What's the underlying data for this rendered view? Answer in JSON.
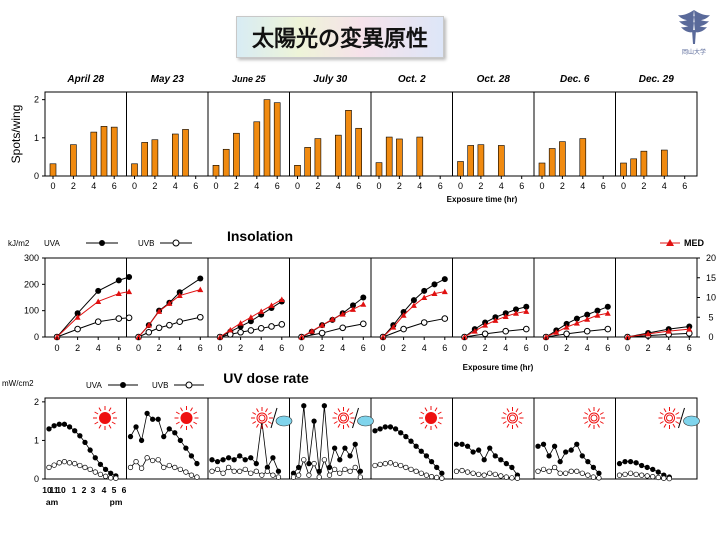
{
  "title": "太陽光の変異原性",
  "logo": {
    "text": "岡山大学",
    "icon": "university-emblem"
  },
  "colors": {
    "bar": "#f08a10",
    "med": "#e01010",
    "sun": "#ee1111",
    "cloud": "#7fd4ec"
  },
  "dates": [
    "April 28",
    "May 23",
    "June 25",
    "July 30",
    "Oct. 2",
    "Oct. 28",
    "Dec. 6",
    "Dec. 29"
  ],
  "sun_icons": [
    "full-sun",
    "full-sun",
    "sun-cloud",
    "sun-cloud",
    "full-sun",
    "weak-sun",
    "weak-sun",
    "sun-cloud"
  ],
  "chart_data": [
    {
      "type": "bar",
      "ylabel": "Spots/wing",
      "xlabel": "Exposure time (hr)",
      "xticks": [
        "0",
        "2",
        "4",
        "6"
      ],
      "yticks": [
        "0",
        "1",
        "2"
      ],
      "ylim": [
        0,
        2.2
      ],
      "x": [
        0,
        1,
        2,
        4,
        5,
        6
      ],
      "panels": [
        {
          "date": "April 28",
          "values": [
            0.32,
            null,
            0.82,
            1.15,
            1.3,
            1.28
          ]
        },
        {
          "date": "May 23",
          "values": [
            0.32,
            0.88,
            0.95,
            1.1,
            1.22,
            null
          ]
        },
        {
          "date": "June 25",
          "values": [
            0.28,
            0.7,
            1.12,
            1.42,
            2.0,
            1.92
          ]
        },
        {
          "date": "July 30",
          "values": [
            0.28,
            0.75,
            0.98,
            1.07,
            1.72,
            1.25
          ]
        },
        {
          "date": "Oct. 2",
          "values": [
            0.35,
            1.02,
            0.97,
            1.02,
            null,
            null
          ]
        },
        {
          "date": "Oct. 28",
          "values": [
            0.38,
            0.8,
            0.82,
            0.8,
            null,
            null
          ]
        },
        {
          "date": "Dec. 6",
          "values": [
            0.34,
            0.72,
            0.9,
            0.98,
            null,
            null
          ]
        },
        {
          "date": "Dec. 29",
          "values": [
            0.34,
            0.45,
            0.65,
            0.68,
            null,
            null
          ]
        }
      ]
    },
    {
      "type": "line",
      "title": "Insolation",
      "ylabel_left": "kJ/m2",
      "xlabel": "Exposure time (hr)",
      "xticks": [
        "0",
        "2",
        "4",
        "6"
      ],
      "yticks_left": [
        "0",
        "100",
        "200",
        "300"
      ],
      "yticks_right": [
        "0",
        "5",
        "10",
        "15",
        "20"
      ],
      "ylim_left": [
        0,
        300
      ],
      "ylim_right": [
        0,
        20
      ],
      "legend": {
        "uva": "UVA",
        "uvb": "UVB",
        "med": "MED"
      },
      "panels": [
        {
          "date": "April 28",
          "uva": {
            "x": [
              0,
              2,
              4,
              6,
              7
            ],
            "y": [
              0,
              90,
              175,
              215,
              228
            ]
          },
          "uvb": {
            "x": [
              0,
              2,
              4,
              6,
              7
            ],
            "y": [
              0,
              30,
              58,
              70,
              73
            ]
          },
          "med": {
            "x": [
              0,
              2,
              4,
              6,
              7
            ],
            "y": [
              0,
              5,
              9,
              11,
              11.5
            ]
          }
        },
        {
          "date": "May 23",
          "uva": {
            "x": [
              0,
              1,
              2,
              3,
              4,
              6
            ],
            "y": [
              0,
              45,
              100,
              130,
              170,
              222
            ]
          },
          "uvb": {
            "x": [
              0,
              1,
              2,
              3,
              4,
              6
            ],
            "y": [
              0,
              18,
              35,
              45,
              58,
              75
            ]
          },
          "med": {
            "x": [
              0,
              1,
              2,
              3,
              4,
              6
            ],
            "y": [
              0,
              3,
              6.5,
              8.5,
              10.5,
              12
            ]
          }
        },
        {
          "date": "June 25",
          "uva": {
            "x": [
              0,
              1,
              2,
              3,
              4,
              5,
              6
            ],
            "y": [
              0,
              20,
              40,
              60,
              85,
              110,
              135
            ]
          },
          "uvb": {
            "x": [
              0,
              1,
              2,
              3,
              4,
              5,
              6
            ],
            "y": [
              0,
              10,
              18,
              25,
              33,
              40,
              48
            ]
          },
          "med": {
            "x": [
              0,
              1,
              2,
              3,
              4,
              5,
              6
            ],
            "y": [
              0,
              1.8,
              3.5,
              5,
              6.5,
              8,
              9.5
            ]
          }
        },
        {
          "date": "July 30",
          "uva": {
            "x": [
              0,
              1,
              2,
              3,
              4,
              5,
              6
            ],
            "y": [
              0,
              20,
              45,
              65,
              90,
              120,
              150
            ]
          },
          "uvb": {
            "x": [
              0,
              2,
              4,
              6
            ],
            "y": [
              0,
              15,
              35,
              50
            ]
          },
          "med": {
            "x": [
              0,
              1,
              2,
              3,
              4,
              5,
              6
            ],
            "y": [
              0,
              1.5,
              3,
              4.5,
              5.8,
              7,
              8.3
            ]
          }
        },
        {
          "date": "Oct. 2",
          "uva": {
            "x": [
              0,
              1,
              2,
              3,
              4,
              5,
              6
            ],
            "y": [
              0,
              45,
              95,
              140,
              175,
              200,
              220
            ]
          },
          "uvb": {
            "x": [
              0,
              2,
              4,
              6
            ],
            "y": [
              0,
              30,
              55,
              70
            ]
          },
          "med": {
            "x": [
              0,
              1,
              2,
              3,
              4,
              5,
              6
            ],
            "y": [
              0,
              2.5,
              5.5,
              8,
              10,
              11,
              11.5
            ]
          }
        },
        {
          "date": "Oct. 28",
          "uva": {
            "x": [
              0,
              1,
              2,
              3,
              4,
              5,
              6
            ],
            "y": [
              0,
              30,
              55,
              75,
              90,
              105,
              115
            ]
          },
          "uvb": {
            "x": [
              0,
              2,
              4,
              6
            ],
            "y": [
              0,
              12,
              22,
              30
            ]
          },
          "med": {
            "x": [
              0,
              1,
              2,
              3,
              4,
              5,
              6
            ],
            "y": [
              0,
              1.5,
              3,
              4.2,
              5.2,
              6,
              6.5
            ]
          }
        },
        {
          "date": "Dec. 6",
          "uva": {
            "x": [
              0,
              1,
              2,
              3,
              4,
              5,
              6
            ],
            "y": [
              0,
              25,
              50,
              70,
              85,
              100,
              115
            ]
          },
          "uvb": {
            "x": [
              0,
              2,
              4,
              6
            ],
            "y": [
              0,
              12,
              22,
              30
            ]
          },
          "med": {
            "x": [
              0,
              1,
              2,
              3,
              4,
              5,
              6
            ],
            "y": [
              0,
              1.2,
              2.5,
              3.5,
              4.5,
              5.5,
              6
            ]
          }
        },
        {
          "date": "Dec. 29",
          "uva": {
            "x": [
              0,
              2,
              4,
              6
            ],
            "y": [
              0,
              15,
              30,
              40
            ]
          },
          "uvb": {
            "x": [
              0,
              2,
              4,
              6
            ],
            "y": [
              0,
              5,
              10,
              14
            ]
          },
          "med": {
            "x": [
              0,
              2,
              4,
              6
            ],
            "y": [
              0,
              0.8,
              1.5,
              2
            ]
          }
        }
      ]
    },
    {
      "type": "line",
      "title": "UV dose rate",
      "ylabel": "mW/cm2",
      "yticks": [
        "0",
        "1",
        "2"
      ],
      "ylim": [
        0,
        2.1
      ],
      "legend": {
        "uva": "UVA",
        "uvb": "UVB"
      },
      "xticks_top": [
        "10",
        "11",
        "10",
        "1",
        "2",
        "3",
        "4",
        "5",
        "6"
      ],
      "xticks_bottom": [
        "am",
        "pm"
      ],
      "panels": [
        {
          "date": "April 28",
          "uva": [
            1.3,
            1.38,
            1.42,
            1.42,
            1.35,
            1.25,
            1.12,
            0.95,
            0.75,
            0.55,
            0.38,
            0.25,
            0.15,
            0.08
          ],
          "uvb": [
            0.3,
            0.36,
            0.42,
            0.45,
            0.42,
            0.4,
            0.35,
            0.3,
            0.25,
            0.18,
            0.12,
            0.07,
            0.03,
            0.02
          ]
        },
        {
          "date": "May 23",
          "uva": [
            1.1,
            1.35,
            1.0,
            1.7,
            1.55,
            1.55,
            1.1,
            1.3,
            1.2,
            1.0,
            0.8,
            0.6,
            0.4
          ],
          "uvb": [
            0.3,
            0.45,
            0.28,
            0.55,
            0.48,
            0.5,
            0.3,
            0.35,
            0.3,
            0.25,
            0.18,
            0.1,
            0.05
          ]
        },
        {
          "date": "June 25",
          "uva": [
            0.5,
            0.45,
            0.5,
            0.55,
            0.5,
            0.6,
            0.5,
            0.55,
            0.4,
            1.5,
            0.3,
            0.55,
            0.2
          ],
          "uvb": [
            0.2,
            0.25,
            0.15,
            0.3,
            0.2,
            0.2,
            0.25,
            0.15,
            0.2,
            0.1,
            0.2,
            0.1,
            0.05
          ]
        },
        {
          "date": "July 30",
          "uva": [
            0.15,
            0.3,
            1.9,
            0.4,
            1.5,
            0.2,
            1.9,
            0.3,
            0.8,
            0.5,
            0.8,
            0.6,
            0.9,
            0.2
          ],
          "uvb": [
            0.05,
            0.1,
            0.5,
            0.1,
            0.4,
            0.05,
            0.5,
            0.1,
            0.25,
            0.15,
            0.25,
            0.2,
            0.3,
            0.05
          ]
        },
        {
          "date": "Oct. 2",
          "uva": [
            1.25,
            1.3,
            1.35,
            1.35,
            1.3,
            1.2,
            1.1,
            0.98,
            0.85,
            0.72,
            0.6,
            0.45,
            0.3,
            0.15
          ],
          "uvb": [
            0.35,
            0.38,
            0.4,
            0.42,
            0.38,
            0.35,
            0.3,
            0.25,
            0.2,
            0.15,
            0.1,
            0.06,
            0.04,
            0.02
          ]
        },
        {
          "date": "Oct. 28",
          "uva": [
            0.9,
            0.9,
            0.85,
            0.7,
            0.75,
            0.5,
            0.8,
            0.6,
            0.5,
            0.4,
            0.3,
            0.1
          ],
          "uvb": [
            0.2,
            0.22,
            0.18,
            0.15,
            0.12,
            0.1,
            0.15,
            0.12,
            0.08,
            0.05,
            0.03,
            0.02
          ]
        },
        {
          "date": "Dec. 6",
          "uva": [
            0.85,
            0.9,
            0.6,
            0.85,
            0.45,
            0.7,
            0.75,
            0.9,
            0.6,
            0.45,
            0.3,
            0.15
          ],
          "uvb": [
            0.2,
            0.25,
            0.2,
            0.3,
            0.15,
            0.15,
            0.2,
            0.2,
            0.15,
            0.1,
            0.05,
            0.03
          ]
        },
        {
          "date": "Dec. 29",
          "uva": [
            0.4,
            0.45,
            0.45,
            0.42,
            0.35,
            0.3,
            0.25,
            0.18,
            0.1,
            0.05
          ],
          "uvb": [
            0.1,
            0.12,
            0.15,
            0.12,
            0.1,
            0.08,
            0.06,
            0.04,
            0.02,
            0.01
          ]
        }
      ]
    }
  ]
}
